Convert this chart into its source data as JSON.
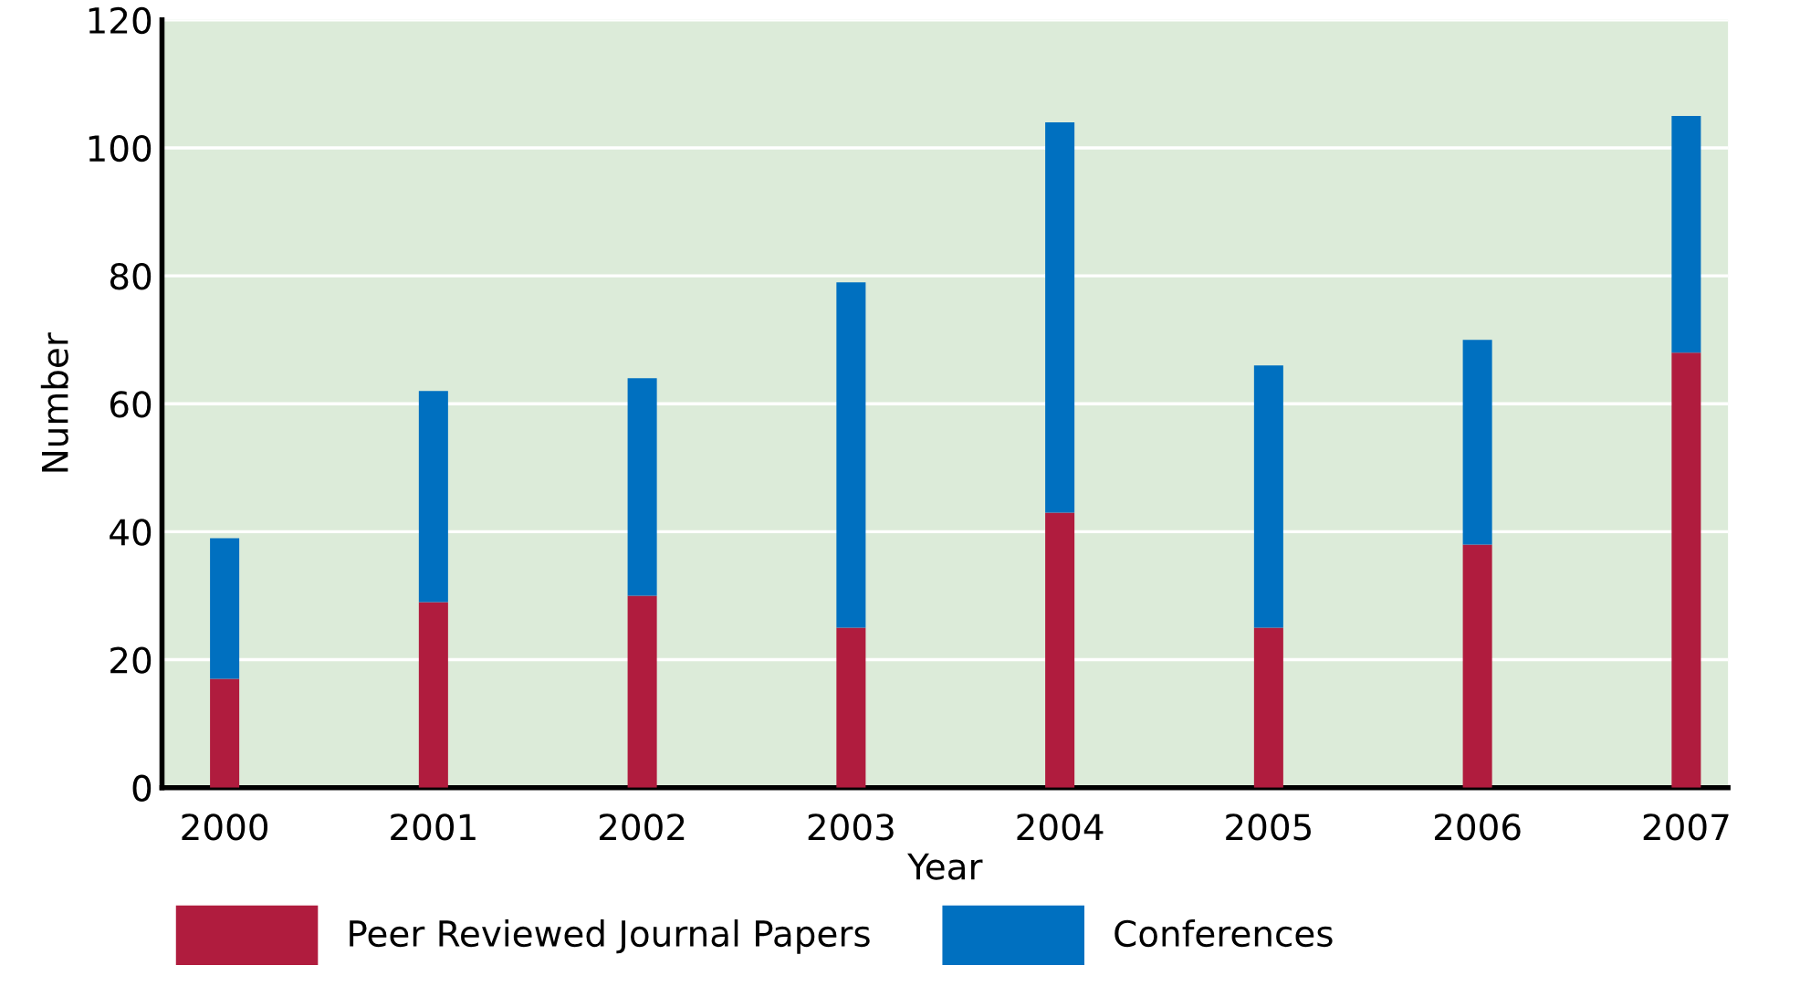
{
  "chart_data": {
    "type": "bar",
    "stacked": true,
    "xlabel": "Year",
    "ylabel": "Number",
    "categories": [
      "2000",
      "2001",
      "2002",
      "2003",
      "2004",
      "2005",
      "2006",
      "2007"
    ],
    "series": [
      {
        "name": "Peer Reviewed Journal Papers",
        "color": "#b01c3e",
        "values": [
          17,
          29,
          30,
          25,
          43,
          25,
          38,
          68
        ]
      },
      {
        "name": "Conferences",
        "color": "#0070c0",
        "values": [
          22,
          33,
          34,
          54,
          61,
          41,
          32,
          37
        ]
      }
    ],
    "ylim": [
      0,
      120
    ],
    "yticks": [
      0,
      20,
      40,
      60,
      80,
      100,
      120
    ],
    "grid": "y",
    "legend": "bottom"
  }
}
